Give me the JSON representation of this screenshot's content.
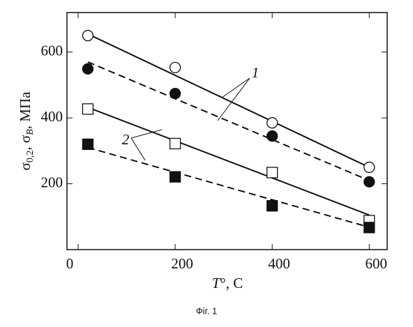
{
  "chart_data": {
    "type": "scatter",
    "caption": "Фіг. 1",
    "xlabel_parts": [
      "T",
      "°, C"
    ],
    "ylabel_parts": [
      "σ",
      "0,2",
      ", σ",
      "B",
      ", МПа"
    ],
    "xlim": [
      -23,
      637
    ],
    "ylim": [
      0,
      720
    ],
    "xticks": [
      0,
      200,
      400,
      600
    ],
    "yticks": [
      200,
      400,
      600
    ],
    "series": [
      {
        "marker": "circle",
        "filled": false,
        "x": [
          20,
          200,
          400,
          600
        ],
        "values": [
          650,
          553,
          385,
          250
        ]
      },
      {
        "marker": "circle",
        "filled": true,
        "x": [
          20,
          200,
          400,
          600
        ],
        "values": [
          549,
          474,
          345,
          206
        ]
      },
      {
        "marker": "square",
        "filled": false,
        "x": [
          20,
          200,
          400,
          600
        ],
        "values": [
          427,
          322,
          234,
          88
        ]
      },
      {
        "marker": "square",
        "filled": true,
        "x": [
          20,
          200,
          400,
          600
        ],
        "values": [
          320,
          221,
          133,
          67
        ]
      }
    ],
    "fits": [
      {
        "dashed": false,
        "x": [
          20,
          600
        ],
        "values": [
          655,
          250
        ]
      },
      {
        "dashed": true,
        "x": [
          20,
          600
        ],
        "values": [
          570,
          210
        ]
      },
      {
        "dashed": false,
        "x": [
          20,
          600
        ],
        "values": [
          432,
          105
        ]
      },
      {
        "dashed": true,
        "x": [
          20,
          600
        ],
        "values": [
          310,
          68
        ]
      }
    ],
    "annotations": [
      "1",
      "2"
    ]
  }
}
